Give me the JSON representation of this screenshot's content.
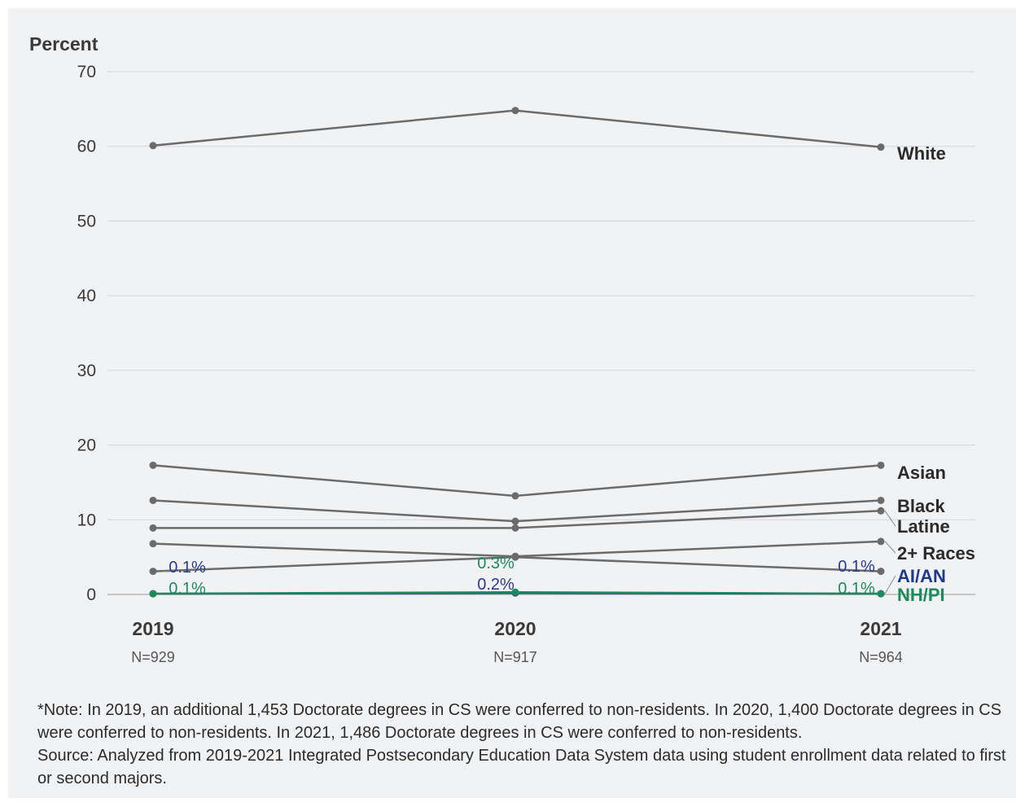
{
  "chart_data": {
    "type": "line",
    "ylabel": "Percent",
    "ylim": [
      0,
      70
    ],
    "yticks": [
      0,
      10,
      20,
      30,
      40,
      50,
      60,
      70
    ],
    "grid": true,
    "categories": [
      "2019",
      "2020",
      "2021"
    ],
    "n_labels": [
      "N=929",
      "N=917",
      "N=964"
    ],
    "series": [
      {
        "name": "White",
        "values": [
          60.1,
          64.8,
          59.9
        ],
        "color": "#6b6b6b"
      },
      {
        "name": "Asian",
        "values": [
          17.3,
          13.2,
          17.3
        ],
        "color": "#6b6b6b"
      },
      {
        "name": "Black",
        "values": [
          12.6,
          9.8,
          12.6
        ],
        "color": "#6b6b6b"
      },
      {
        "name": "Latine",
        "values": [
          8.9,
          8.9,
          11.2
        ],
        "color": "#6b6b6b"
      },
      {
        "name": "2+ Races",
        "values": [
          6.8,
          5.1,
          7.1
        ],
        "color": "#6b6b6b"
      },
      {
        "name": "AI/AN",
        "values": [
          0.1,
          0.2,
          0.1
        ],
        "color": "#1f3a8a"
      },
      {
        "name": "NH/PI",
        "values": [
          0.1,
          0.3,
          0.1
        ],
        "color": "#1c8a5c"
      },
      {
        "name": "",
        "values": [
          3.1,
          5.0,
          3.1
        ],
        "color": "#6b6b6b"
      }
    ],
    "annotations": [
      {
        "text": "0.1%",
        "series": "AI/AN",
        "index": 0,
        "color": "#2d3a8c"
      },
      {
        "text": "0.1%",
        "series": "NH/PI",
        "index": 0,
        "color": "#1c8a5c"
      },
      {
        "text": "0.3%",
        "series": "NH/PI",
        "index": 1,
        "color": "#1c8a5c"
      },
      {
        "text": "0.2%",
        "series": "AI/AN",
        "index": 1,
        "color": "#2d3a8c"
      },
      {
        "text": "0.1%",
        "series": "AI/AN",
        "index": 2,
        "color": "#2d3a8c"
      },
      {
        "text": "0.1%",
        "series": "NH/PI",
        "index": 2,
        "color": "#1c8a5c"
      }
    ]
  },
  "note": {
    "line1": "*Note: In 2019, an additional 1,453 Doctorate degrees in CS were conferred to non-residents. In 2020, 1,400 Doctorate degrees in CS were conferred to non-residents. In 2021, 1,486 Doctorate degrees in CS were conferred to non-residents.",
    "line2": "Source: Analyzed from 2019-2021 Integrated Postsecondary Education Data System data using student enrollment data related to first or second majors."
  }
}
